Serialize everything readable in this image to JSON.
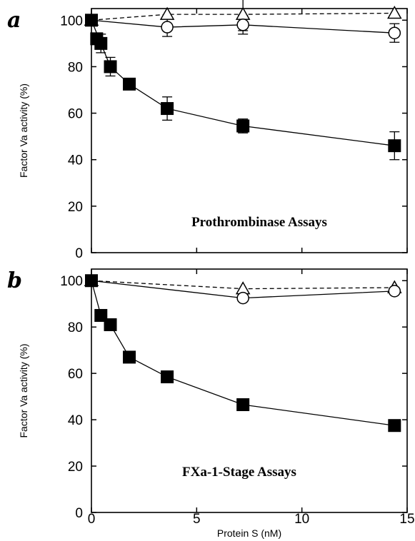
{
  "chart_data": [
    {
      "panel": "a",
      "type": "scatter",
      "annotation": "Prothrombinase Assays",
      "ylabel": "Factor Va activity (%)",
      "xlabel": "",
      "xlim": [
        0,
        15
      ],
      "ylim": [
        0,
        105
      ],
      "xticks": [
        "",
        "",
        "",
        ""
      ],
      "yticks": [
        "0",
        "20",
        "40",
        "60",
        "80",
        "100"
      ],
      "series": [
        {
          "marker": "filled-square",
          "line": "solid",
          "x": [
            0,
            0.45,
            0.9,
            1.8,
            3.6,
            7.2,
            14.4
          ],
          "y": [
            100,
            90,
            80,
            72.5,
            62,
            54.5,
            46
          ],
          "err": [
            0,
            4,
            4,
            0,
            5,
            3,
            6
          ]
        },
        {
          "marker": "open-circle",
          "line": "solid",
          "x": [
            0,
            3.6,
            7.2,
            14.4
          ],
          "y": [
            100,
            97,
            98,
            94.5
          ],
          "err": [
            0,
            4,
            4,
            4
          ]
        },
        {
          "marker": "open-triangle",
          "line": "dashed",
          "x": [
            0,
            3.6,
            7.2,
            14.4
          ],
          "y": [
            100,
            102.5,
            102.5,
            103
          ],
          "err": [
            0,
            0,
            7,
            0
          ]
        }
      ],
      "extra_points": [
        {
          "marker": "filled-square",
          "x": 0.25,
          "y": 92
        }
      ]
    },
    {
      "panel": "b",
      "type": "scatter",
      "annotation": "FXa-1-Stage Assays",
      "ylabel": "Factor Va activity (%)",
      "xlabel": "Protein S (nM)",
      "xlim": [
        0,
        15
      ],
      "ylim": [
        0,
        105
      ],
      "xticks": [
        "0",
        "5",
        "10",
        "15"
      ],
      "yticks": [
        "0",
        "20",
        "40",
        "60",
        "80",
        "100"
      ],
      "series": [
        {
          "marker": "filled-square",
          "line": "solid",
          "x": [
            0,
            0.45,
            0.9,
            1.8,
            3.6,
            7.2,
            14.4
          ],
          "y": [
            100,
            85,
            81,
            67,
            58.5,
            46.5,
            37.5
          ],
          "err": [
            0,
            0,
            0,
            0,
            0,
            0,
            0
          ]
        },
        {
          "marker": "open-circle",
          "line": "solid",
          "x": [
            0,
            7.2,
            14.4
          ],
          "y": [
            100,
            92.5,
            95.5
          ],
          "err": [
            0,
            0,
            0
          ]
        },
        {
          "marker": "open-triangle",
          "line": "dashed",
          "x": [
            0,
            7.2,
            14.4
          ],
          "y": [
            100,
            96.5,
            97
          ],
          "err": [
            0,
            0,
            0
          ]
        }
      ],
      "extra_points": []
    }
  ]
}
